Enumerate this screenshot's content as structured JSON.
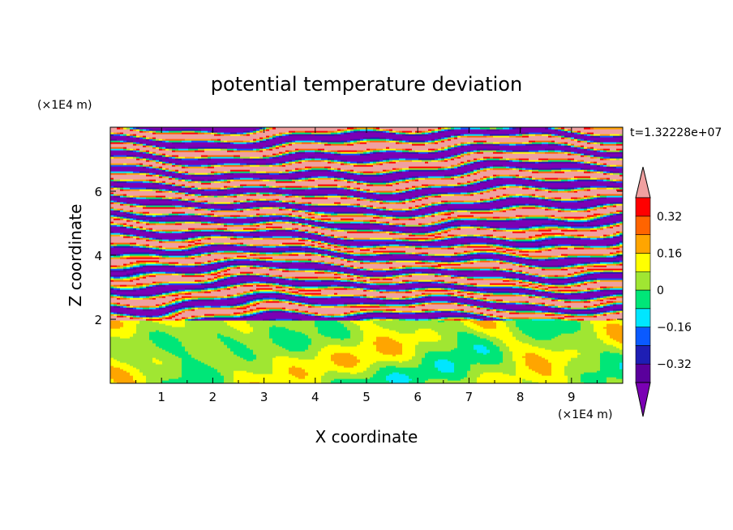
{
  "chart_data": {
    "type": "heatmap",
    "title": "potential temperature deviation",
    "xlabel": "X coordinate",
    "ylabel": "Z coordinate",
    "x_unit_label": "(×1E4 m)",
    "y_unit_label": "(×1E4 m)",
    "time_label": "t=1.32228e+07",
    "xlim": [
      0,
      10
    ],
    "ylim": [
      0,
      8
    ],
    "x_ticks": [
      1,
      2,
      3,
      4,
      5,
      6,
      7,
      8,
      9
    ],
    "y_ticks": [
      2,
      4,
      6
    ],
    "colorbar": {
      "levels": [
        -0.4,
        -0.32,
        -0.24,
        -0.16,
        -0.08,
        0,
        0.08,
        0.16,
        0.24,
        0.32,
        0.4
      ],
      "labeled_levels": [
        "0.32",
        "0.16",
        "0",
        "−0.16",
        "−0.32"
      ],
      "labeled_values": [
        0.32,
        0.16,
        0,
        -0.16,
        -0.32
      ],
      "colors": [
        "#7b00b4",
        "#5a009c",
        "#1e1eb4",
        "#0a5aff",
        "#00e6ff",
        "#00e678",
        "#a0e632",
        "#ffff00",
        "#ffa500",
        "#ff6400",
        "#ff0000",
        "#f0a0a0"
      ],
      "under_color": "#7b00b4",
      "over_color": "#f0a0a0"
    },
    "zones": [
      {
        "z_range": [
          0,
          2
        ],
        "description_values": [
          -0.05,
          0.15
        ]
      },
      {
        "z_range": [
          2,
          5.5
        ],
        "description_values": [
          -0.4,
          0.4
        ]
      },
      {
        "z_range": [
          5.5,
          8
        ],
        "description_values": [
          -0.4,
          0.4
        ]
      }
    ]
  }
}
